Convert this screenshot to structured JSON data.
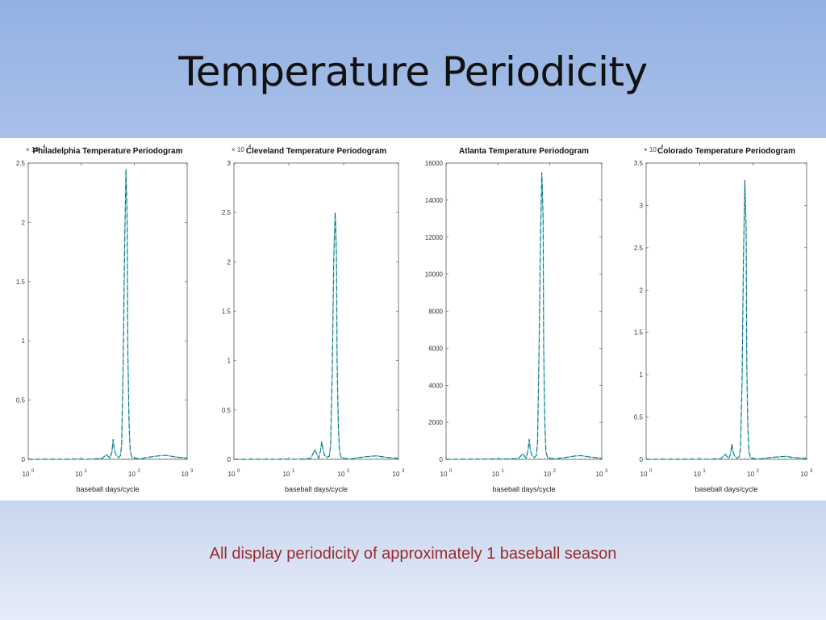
{
  "slide": {
    "title": "Temperature Periodicity",
    "caption": "All display periodicity of approximately 1 baseball season"
  },
  "colors": {
    "series_dark": "#1e5a78",
    "series_light": "#5fd6d0",
    "caption": "#9b2a2a"
  },
  "chart_data": [
    {
      "type": "line",
      "title": "Philadelphia Temperature Periodogram",
      "xlabel": "baseball days/cycle",
      "ylabel": "",
      "xscale": "log",
      "xlim": [
        1,
        1000
      ],
      "ylim": [
        0,
        25000
      ],
      "ytick_values": [
        0,
        0.5,
        1,
        1.5,
        2,
        2.5
      ],
      "ytick_labels": [
        "0",
        "0.5",
        "1",
        "1.5",
        "2",
        "2.5"
      ],
      "y_multiplier_label": "× 10",
      "y_multiplier_exp": "4",
      "xtick_values": [
        1,
        10,
        100,
        1000
      ],
      "xtick_base": "10",
      "xtick_exps": [
        "0",
        "1",
        "2",
        "3"
      ],
      "series": [
        {
          "x": [
            1,
            5,
            15,
            25,
            30,
            35,
            38,
            40,
            42,
            45,
            50,
            55,
            58,
            62,
            66,
            70,
            74,
            76,
            80,
            84,
            90,
            100,
            130,
            200,
            300,
            400,
            600,
            1000
          ],
          "y": [
            0,
            10,
            20,
            80,
            400,
            80,
            600,
            1700,
            900,
            400,
            150,
            300,
            1200,
            8000,
            18000,
            24500,
            20000,
            9000,
            3000,
            700,
            200,
            100,
            50,
            200,
            300,
            350,
            200,
            100
          ]
        }
      ]
    },
    {
      "type": "line",
      "title": "Cleveland Temperature Periodogram",
      "xlabel": "baseball days/cycle",
      "ylabel": "",
      "xscale": "log",
      "xlim": [
        1,
        1000
      ],
      "ylim": [
        0,
        30000
      ],
      "ytick_values": [
        0,
        0.5,
        1,
        1.5,
        2,
        2.5,
        3
      ],
      "ytick_labels": [
        "0",
        "0.5",
        "1",
        "1.5",
        "2",
        "2.5",
        "3"
      ],
      "y_multiplier_label": "× 10",
      "y_multiplier_exp": "4",
      "xtick_values": [
        1,
        10,
        100,
        1000
      ],
      "xtick_base": "10",
      "xtick_exps": [
        "0",
        "1",
        "2",
        "3"
      ],
      "series": [
        {
          "x": [
            1,
            5,
            15,
            25,
            30,
            35,
            38,
            40,
            42,
            45,
            50,
            55,
            58,
            62,
            66,
            70,
            74,
            76,
            80,
            84,
            90,
            100,
            130,
            200,
            300,
            400,
            600,
            1000
          ],
          "y": [
            0,
            10,
            20,
            100,
            1000,
            100,
            900,
            1800,
            1000,
            400,
            200,
            300,
            1500,
            9000,
            20000,
            25000,
            21000,
            10000,
            3500,
            800,
            200,
            100,
            50,
            200,
            300,
            350,
            200,
            100
          ]
        }
      ]
    },
    {
      "type": "line",
      "title": "Atlanta Temperature Periodogram",
      "xlabel": "baseball days/cycle",
      "ylabel": "",
      "xscale": "log",
      "xlim": [
        1,
        1000
      ],
      "ylim": [
        0,
        16000
      ],
      "ytick_values": [
        0,
        2000,
        4000,
        6000,
        8000,
        10000,
        12000,
        14000,
        16000
      ],
      "ytick_labels": [
        "0",
        "2000",
        "4000",
        "6000",
        "8000",
        "10000",
        "12000",
        "14000",
        "16000"
      ],
      "y_multiplier_label": "",
      "y_multiplier_exp": "",
      "xtick_values": [
        1,
        10,
        100,
        1000
      ],
      "xtick_base": "10",
      "xtick_exps": [
        "0",
        "1",
        "2",
        "3"
      ],
      "series": [
        {
          "x": [
            1,
            5,
            15,
            25,
            30,
            35,
            38,
            40,
            42,
            45,
            50,
            55,
            58,
            62,
            66,
            70,
            74,
            76,
            80,
            84,
            90,
            100,
            130,
            200,
            300,
            400,
            600,
            1000
          ],
          "y": [
            0,
            10,
            20,
            50,
            300,
            60,
            500,
            1100,
            500,
            200,
            100,
            200,
            900,
            6000,
            12000,
            15500,
            13000,
            6000,
            2000,
            400,
            120,
            60,
            30,
            100,
            180,
            200,
            120,
            60
          ]
        }
      ]
    },
    {
      "type": "line",
      "title": "Colorado Temperature Periodogram",
      "xlabel": "baseball days/cycle",
      "ylabel": "",
      "xscale": "log",
      "xlim": [
        1,
        1000
      ],
      "ylim": [
        0,
        35000
      ],
      "ytick_values": [
        0,
        0.5,
        1,
        1.5,
        2,
        2.5,
        3,
        3.5
      ],
      "ytick_labels": [
        "0",
        "0.5",
        "1",
        "1.5",
        "2",
        "2.5",
        "3",
        "3.5"
      ],
      "y_multiplier_label": "× 10",
      "y_multiplier_exp": "4",
      "xtick_values": [
        1,
        10,
        100,
        1000
      ],
      "xtick_base": "10",
      "xtick_exps": [
        "0",
        "1",
        "2",
        "3"
      ],
      "series": [
        {
          "x": [
            1,
            5,
            15,
            25,
            30,
            35,
            38,
            40,
            42,
            45,
            50,
            55,
            58,
            62,
            66,
            70,
            74,
            76,
            80,
            84,
            90,
            100,
            130,
            200,
            300,
            400,
            600,
            1000
          ],
          "y": [
            0,
            10,
            20,
            80,
            600,
            80,
            700,
            1800,
            900,
            400,
            150,
            300,
            1300,
            9000,
            24000,
            33000,
            27000,
            11000,
            3500,
            800,
            200,
            100,
            50,
            200,
            300,
            350,
            200,
            100
          ]
        }
      ]
    }
  ]
}
